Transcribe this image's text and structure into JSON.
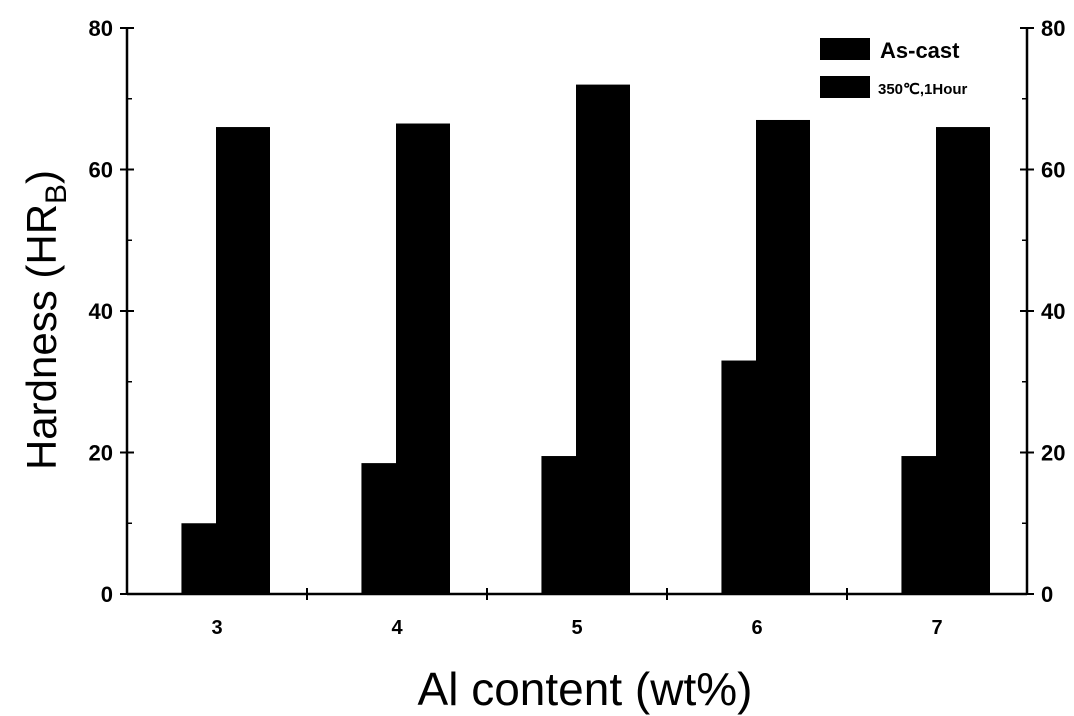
{
  "chart_data": {
    "type": "bar",
    "categories": [
      "3",
      "4",
      "5",
      "6",
      "7"
    ],
    "series": [
      {
        "name": "As-cast",
        "values": [
          10,
          18.5,
          19.5,
          33,
          19.5
        ],
        "color": "#000000"
      },
      {
        "name": "350℃,1Hour",
        "values": [
          66,
          66.5,
          72,
          67,
          66
        ],
        "color": "#000000"
      }
    ],
    "xlabel": "Al content (wt%)",
    "ylabel_main": "Hardness (HR",
    "ylabel_sub": "B",
    "ylabel_close": ")",
    "ylim": [
      0,
      80
    ],
    "yticks": [
      0,
      20,
      40,
      60,
      80
    ],
    "ytick_labels": [
      "0",
      "20",
      "40",
      "60",
      "80"
    ],
    "right_axis": true,
    "legend_position": "top-right",
    "grid": false
  }
}
